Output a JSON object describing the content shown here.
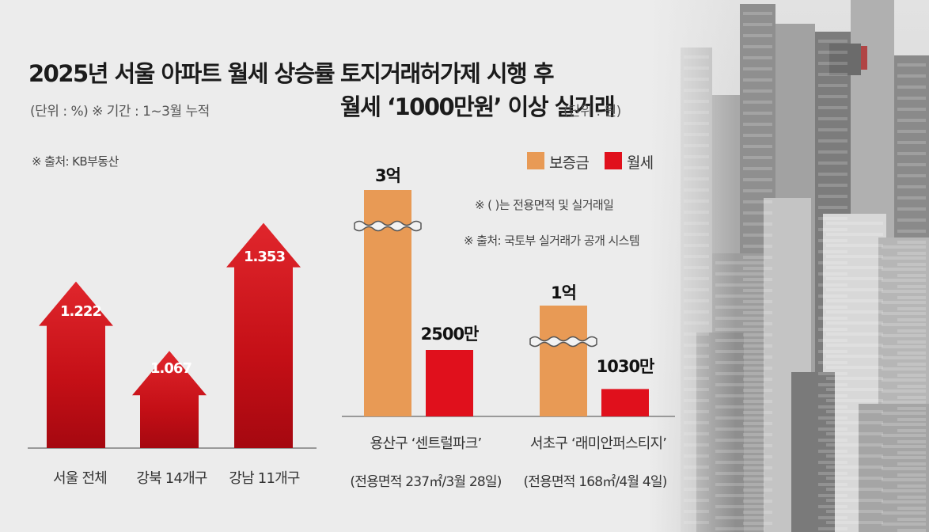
{
  "colors": {
    "arrow": "#cc1017",
    "deposit": "#e89a55",
    "rent": "#e0101c",
    "background": "#ececec",
    "axis": "#999999"
  },
  "left_panel": {
    "title": "2025년 서울 아파트 월세 상승률",
    "subtitle": "(단위 : %) ※ 기간 : 1~3월 누적",
    "source": "※ 출처: KB부동산"
  },
  "right_panel": {
    "title_line1": "토지거래허가제 시행 후",
    "title_line2": "월세 ‘1000만원’ 이상 실거래",
    "unit": "(단위 : 원)",
    "legend": {
      "deposit": "보증금",
      "rent": "월세"
    },
    "note1": "※ ( )는 전용면적 및 실거래일",
    "note2": "※ 출처: 국토부 실거래가 공개 시스템"
  },
  "chart_data": [
    {
      "type": "bar",
      "title": "2025년 서울 아파트 월세 상승률",
      "unit": "%",
      "categories": [
        "서울 전체",
        "강북 14개구",
        "강남 11개구"
      ],
      "values": [
        1.222,
        1.067,
        1.353
      ],
      "value_labels": [
        "1.222",
        "1.067",
        "1.353"
      ],
      "ylim": [
        0,
        1.4
      ]
    },
    {
      "type": "bar",
      "title": "토지거래허가제 시행 후 월세 ‘1000만원’ 이상 실거래",
      "unit": "원",
      "categories": [
        "용산구 ‘센트럴파크’",
        "서초구 ‘래미안퍼스티지’"
      ],
      "category_notes": [
        "(전용면적 237㎡/3월 28일)",
        "(전용면적 168㎡/4월 4일)"
      ],
      "series": [
        {
          "name": "보증금",
          "values": [
            300000000,
            100000000
          ],
          "value_labels": [
            "3억",
            "1억"
          ]
        },
        {
          "name": "월세",
          "values": [
            25000000,
            10300000
          ],
          "value_labels": [
            "2500만",
            "1030만"
          ]
        }
      ],
      "axis_break": true
    }
  ]
}
